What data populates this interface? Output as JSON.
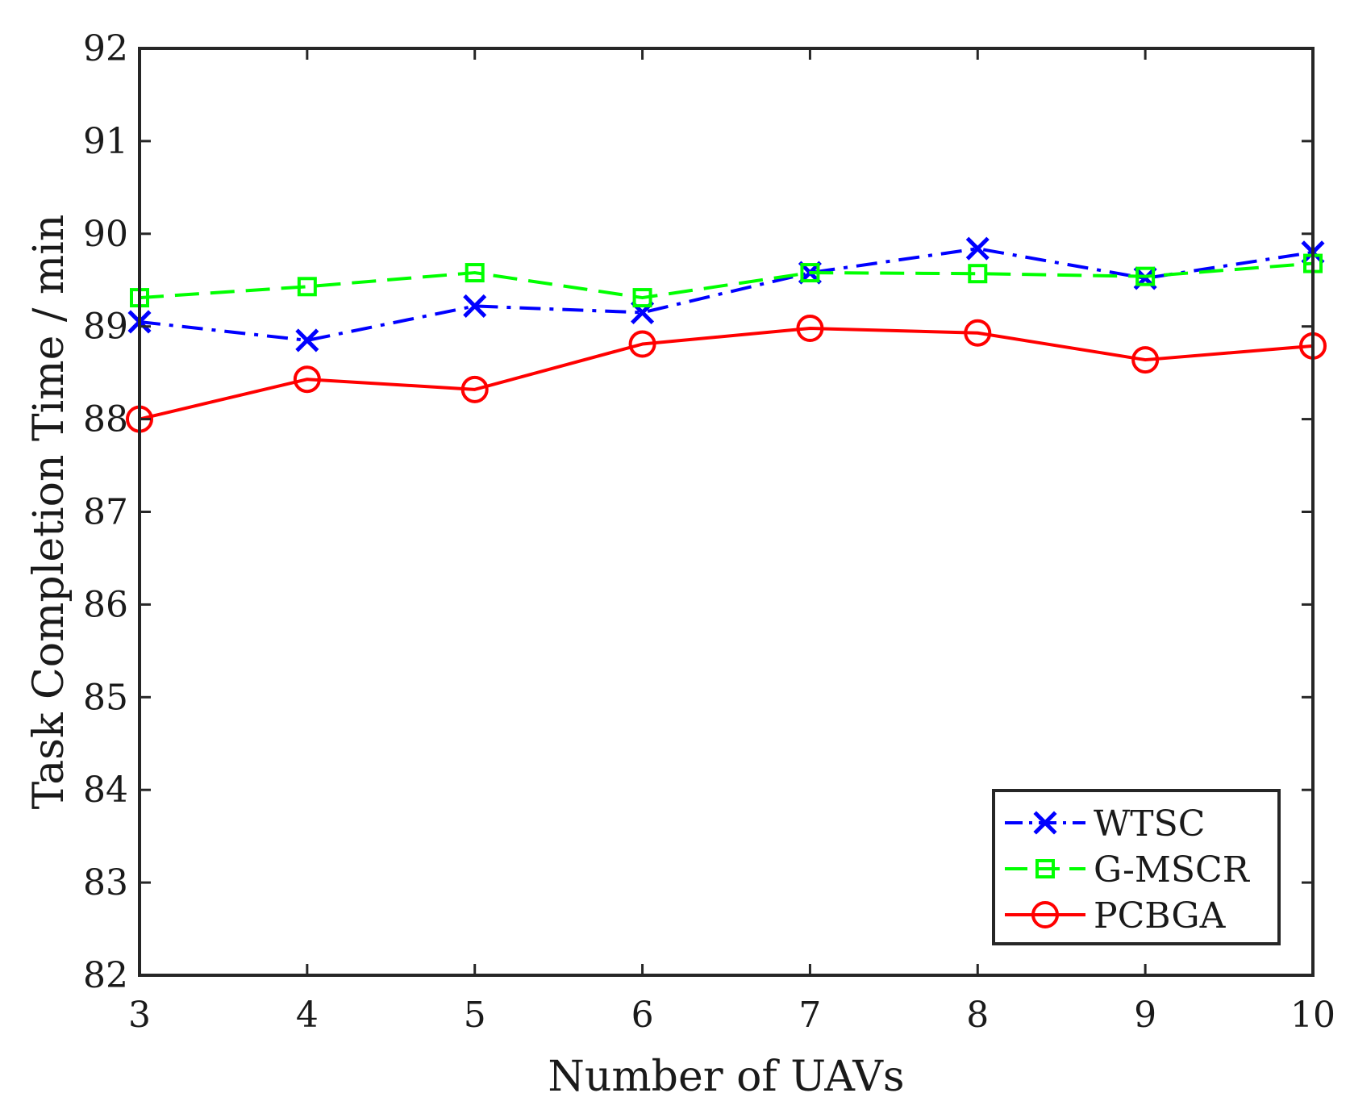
{
  "chart_data": {
    "type": "line",
    "title": "",
    "xlabel": "Number of UAVs",
    "ylabel": "Task Completion Time / min",
    "x": [
      3,
      4,
      5,
      6,
      7,
      8,
      9,
      10
    ],
    "xlim": [
      3,
      10
    ],
    "ylim": [
      82,
      92
    ],
    "xticks": [
      "3",
      "4",
      "5",
      "6",
      "7",
      "8",
      "9",
      "10"
    ],
    "yticks": [
      "82",
      "83",
      "84",
      "85",
      "86",
      "87",
      "88",
      "89",
      "90",
      "91",
      "92"
    ],
    "grid": false,
    "legend_position": "bottom-right",
    "series": [
      {
        "name": "WTSC",
        "values": [
          89.05,
          88.85,
          89.22,
          89.15,
          89.58,
          89.84,
          89.52,
          89.8
        ],
        "color": "#0000ff",
        "line_style": "dash-dot",
        "marker": "x"
      },
      {
        "name": "G-MSCR",
        "values": [
          89.31,
          89.43,
          89.58,
          89.31,
          89.58,
          89.57,
          89.54,
          89.68
        ],
        "color": "#00ff00",
        "line_style": "dashed",
        "marker": "square"
      },
      {
        "name": "PCBGA",
        "values": [
          88.0,
          88.43,
          88.32,
          88.81,
          88.98,
          88.93,
          88.64,
          88.79
        ],
        "color": "#ff0000",
        "line_style": "solid",
        "marker": "circle"
      }
    ]
  }
}
